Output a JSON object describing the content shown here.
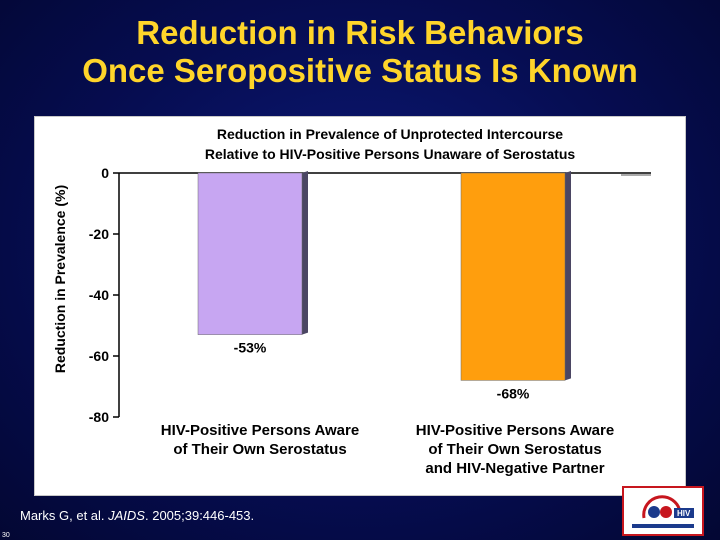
{
  "slide": {
    "title_line1": "Reduction in Risk Behaviors",
    "title_line2": "Once Seropositive Status Is Known",
    "citation_prefix": "Marks G, et al. ",
    "citation_journal": "JAIDS",
    "citation_suffix": ". 2005;39:446-453.",
    "slide_number": "30"
  },
  "logo": {
    "icon": "hiv-prevention-logo-icon",
    "text": "HIV",
    "colors": [
      "#c7161e",
      "#1b3a8c"
    ]
  },
  "colors": {
    "title": "#ffd52a",
    "background": "#060d52",
    "bar1": "#c7a6f2",
    "bar2": "#ff9e0d"
  },
  "chart_data": {
    "type": "bar",
    "title_line1": "Reduction in Prevalence of Unprotected Intercourse",
    "title_line2": "Relative to HIV-Positive Persons Unaware of Serostatus",
    "ylabel": "Reduction in Prevalence (%)",
    "ylim": [
      -80,
      0
    ],
    "yticks": [
      0,
      -20,
      -40,
      -60,
      -80
    ],
    "ytick_labels": [
      "0",
      "-20",
      "-40",
      "-60",
      "-80"
    ],
    "categories": [
      [
        "HIV-Positive Persons Aware",
        "of Their Own Serostatus"
      ],
      [
        "HIV-Positive Persons Aware",
        "of Their Own Serostatus",
        "and HIV-Negative Partner"
      ]
    ],
    "values": [
      -53,
      -68
    ],
    "value_labels": [
      "-53%",
      "-68%"
    ],
    "grid": false,
    "legend": "none"
  }
}
